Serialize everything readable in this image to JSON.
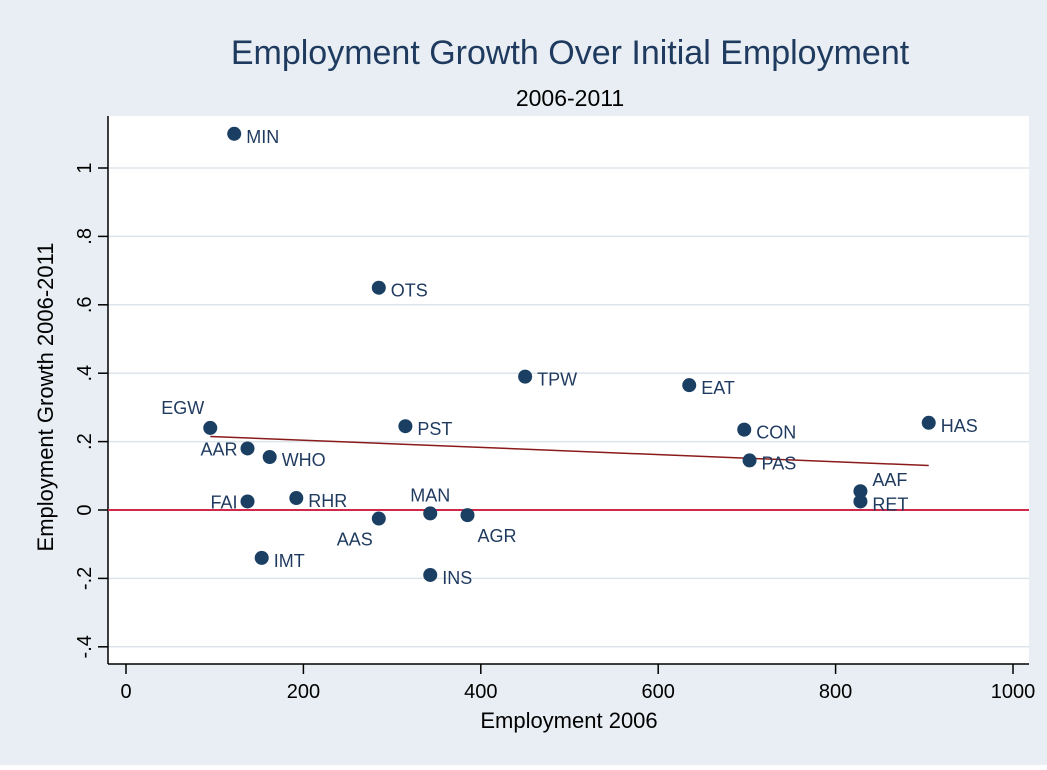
{
  "chart_data": {
    "type": "scatter",
    "title": "Employment Growth Over Initial Employment",
    "subtitle": "2006-2011",
    "xlabel": "Employment 2006",
    "ylabel": "Employment Growth 2006-2011",
    "xlim": [
      0,
      1000
    ],
    "ylim": [
      -0.4,
      1.1
    ],
    "xticks": [
      {
        "value": 0,
        "label": "0"
      },
      {
        "value": 200,
        "label": "200"
      },
      {
        "value": 400,
        "label": "400"
      },
      {
        "value": 600,
        "label": "600"
      },
      {
        "value": 800,
        "label": "800"
      },
      {
        "value": 1000,
        "label": "1000"
      }
    ],
    "yticks": [
      {
        "value": -0.4,
        "label": "-.4"
      },
      {
        "value": -0.2,
        "label": "-.2"
      },
      {
        "value": 0,
        "label": "0"
      },
      {
        "value": 0.2,
        "label": ".2"
      },
      {
        "value": 0.4,
        "label": ".4"
      },
      {
        "value": 0.6,
        "label": ".6"
      },
      {
        "value": 0.8,
        "label": ".8"
      },
      {
        "value": 1,
        "label": "1"
      }
    ],
    "grid": true,
    "points": [
      {
        "label": "MIN",
        "x": 122,
        "y": 1.1,
        "pos": "right"
      },
      {
        "label": "OTS",
        "x": 285,
        "y": 0.65,
        "pos": "right"
      },
      {
        "label": "TPW",
        "x": 450,
        "y": 0.39,
        "pos": "right"
      },
      {
        "label": "EAT",
        "x": 635,
        "y": 0.365,
        "pos": "right"
      },
      {
        "label": "EGW",
        "x": 95,
        "y": 0.24,
        "pos": "upper-left"
      },
      {
        "label": "PST",
        "x": 315,
        "y": 0.245,
        "pos": "right"
      },
      {
        "label": "CON",
        "x": 697,
        "y": 0.235,
        "pos": "right"
      },
      {
        "label": "HAS",
        "x": 905,
        "y": 0.255,
        "pos": "right"
      },
      {
        "label": "AAR",
        "x": 137,
        "y": 0.18,
        "pos": "left"
      },
      {
        "label": "WHO",
        "x": 162,
        "y": 0.155,
        "pos": "right"
      },
      {
        "label": "PAS",
        "x": 703,
        "y": 0.145,
        "pos": "right"
      },
      {
        "label": "AAF",
        "x": 828,
        "y": 0.055,
        "pos": "upper-right"
      },
      {
        "label": "FAI",
        "x": 137,
        "y": 0.025,
        "pos": "left"
      },
      {
        "label": "RHR",
        "x": 192,
        "y": 0.035,
        "pos": "right"
      },
      {
        "label": "RET",
        "x": 828,
        "y": 0.025,
        "pos": "right"
      },
      {
        "label": "MAN",
        "x": 343,
        "y": -0.01,
        "pos": "above"
      },
      {
        "label": "AGR",
        "x": 385,
        "y": -0.015,
        "pos": "lower-right"
      },
      {
        "label": "AAS",
        "x": 285,
        "y": -0.025,
        "pos": "lower-left"
      },
      {
        "label": "IMT",
        "x": 153,
        "y": -0.14,
        "pos": "right"
      },
      {
        "label": "INS",
        "x": 343,
        "y": -0.19,
        "pos": "right"
      }
    ],
    "fit_line": {
      "x": [
        95,
        905
      ],
      "y": [
        0.215,
        0.13
      ]
    },
    "reference_line_y": 0,
    "colors": {
      "marker": "#1a3f63",
      "fit_line": "#8b1a1a",
      "reference_line": "#d0284a",
      "title": "#1f3a5f",
      "background": "#e8eef3",
      "plot_region": "#ffffff",
      "grid": "#dde5ec"
    }
  }
}
